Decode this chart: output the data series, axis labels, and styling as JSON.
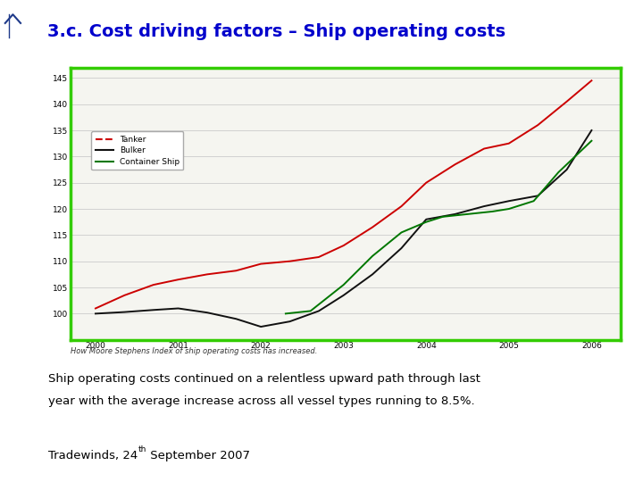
{
  "title": "3.c. Cost driving factors – Ship operating costs",
  "title_color": "#0000CC",
  "title_fontsize": 14,
  "background_color": "#FFFFFF",
  "sidebar_color": "#1F3A8A",
  "chart_border_color": "#33CC00",
  "chart_border_linewidth": 2.5,
  "years": [
    2000,
    2001,
    2002,
    2003,
    2004,
    2005,
    2006
  ],
  "tanker_x": [
    2000,
    2000.35,
    2000.7,
    2001.0,
    2001.35,
    2001.7,
    2002.0,
    2002.35,
    2002.7,
    2003.0,
    2003.35,
    2003.7,
    2004.0,
    2004.35,
    2004.7,
    2005.0,
    2005.35,
    2005.7,
    2006.0
  ],
  "tanker_y": [
    101,
    103.5,
    105.5,
    106.5,
    107.5,
    108.2,
    109.5,
    110.0,
    110.8,
    113.0,
    116.5,
    120.5,
    125.0,
    128.5,
    131.5,
    132.5,
    136.0,
    140.5,
    144.5
  ],
  "bulker_x": [
    2000,
    2000.35,
    2000.7,
    2001.0,
    2001.35,
    2001.7,
    2002.0,
    2002.35,
    2002.7,
    2003.0,
    2003.35,
    2003.7,
    2004.0,
    2004.35,
    2004.7,
    2005.0,
    2005.35,
    2005.7,
    2006.0
  ],
  "bulker_y": [
    100,
    100.3,
    100.7,
    101.0,
    100.2,
    99.0,
    97.5,
    98.5,
    100.5,
    103.5,
    107.5,
    112.5,
    118.0,
    119.0,
    120.5,
    121.5,
    122.5,
    127.5,
    135.0
  ],
  "container_x": [
    2002.3,
    2002.6,
    2003.0,
    2003.35,
    2003.7,
    2004.0,
    2004.2,
    2004.5,
    2004.8,
    2005.0,
    2005.3,
    2005.6,
    2006.0
  ],
  "container_y": [
    100.0,
    100.5,
    105.5,
    111.0,
    115.5,
    117.5,
    118.5,
    119.0,
    119.5,
    120.0,
    121.5,
    127.0,
    133.0
  ],
  "ylim": [
    95,
    147
  ],
  "yticks": [
    100,
    105,
    110,
    115,
    120,
    125,
    130,
    135,
    140,
    145
  ],
  "caption": "How Moore Stephens Index of ship operating costs has increased.",
  "body_text_line1": "Ship operating costs continued on a relentless upward path through last",
  "body_text_line2": "year with the average increase across all vessel types running to 8.5%.",
  "footnote_main": "Tradewinds, 24",
  "footnote_super": "th",
  "footnote_end": " September 2007",
  "tanker_color": "#CC0000",
  "bulker_color": "#111111",
  "container_color": "#007700",
  "legend_labels": [
    "Tanker",
    "Bulker",
    "Container Ship"
  ],
  "chart_bg": "#F5F5F0"
}
